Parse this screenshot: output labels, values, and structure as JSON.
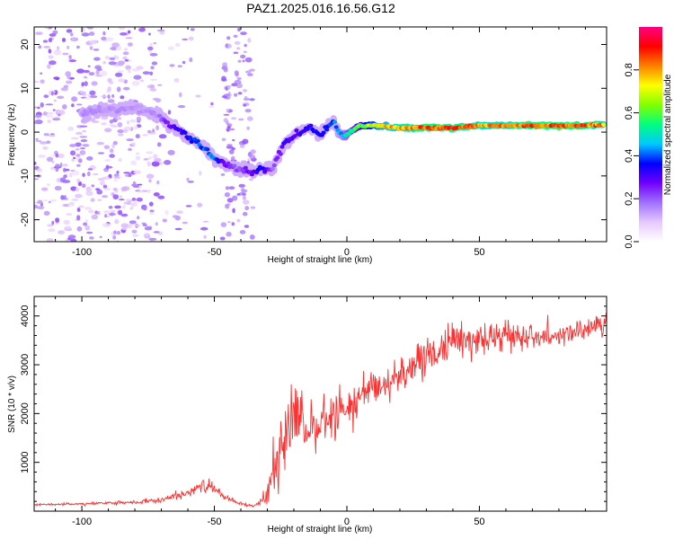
{
  "figure": {
    "title": "PAZ1.2025.016.16.56.G12"
  },
  "chart_data": [
    {
      "type": "heatmap",
      "xlabel": "Height of straight line (km)",
      "ylabel": "Frequency (Hz)",
      "xlim": [
        -118,
        98
      ],
      "ylim": [
        -25,
        24
      ],
      "x_ticks": [
        -100,
        -50,
        0,
        50
      ],
      "y_ticks": [
        -20,
        -10,
        0,
        10,
        20
      ],
      "colorbar": {
        "label": "Normalized spectral amplitude",
        "range": [
          0,
          1
        ],
        "ticks": [
          0.0,
          0.2,
          0.4,
          0.6,
          0.8
        ],
        "colormap": [
          "#ffffff",
          "#e6c8ff",
          "#a070ff",
          "#7000ff",
          "#0000ff",
          "#00c8ff",
          "#00ff80",
          "#80ff00",
          "#ffff00",
          "#ff8000",
          "#ff0000",
          "#ff0080"
        ]
      },
      "ridge_frequency": {
        "x": [
          -100,
          -90,
          -80,
          -72,
          -66,
          -60,
          -55,
          -50,
          -45,
          -40,
          -35,
          -32,
          -28,
          -24,
          -20,
          -15,
          -10,
          -5,
          -2,
          0,
          5,
          10,
          20,
          30,
          40,
          50,
          60,
          70,
          80,
          90,
          97
        ],
        "freq": [
          4.5,
          5,
          5.5,
          4,
          1.5,
          -1,
          -3,
          -6,
          -7.5,
          -8.5,
          -9,
          -8.5,
          -8.5,
          -3,
          -1,
          1,
          -0.5,
          2.5,
          -1,
          -0.5,
          1.5,
          1.5,
          1,
          1,
          1,
          1.5,
          1.5,
          1.5,
          1.5,
          1.5,
          1.8
        ],
        "amplitude": [
          0.15,
          0.15,
          0.15,
          0.15,
          0.3,
          0.35,
          0.4,
          0.4,
          0.25,
          0.2,
          0.3,
          0.35,
          0.2,
          0.3,
          0.3,
          0.35,
          0.35,
          0.4,
          0.45,
          0.5,
          0.6,
          0.7,
          0.8,
          0.85,
          0.85,
          0.8,
          0.8,
          0.85,
          0.85,
          0.85,
          0.8
        ]
      },
      "scatter_region": {
        "x": [
          -118,
          -70
        ],
        "freq": [
          -25,
          24
        ],
        "amplitude": 0.15
      }
    },
    {
      "type": "line",
      "xlabel": "Height of straight line (km)",
      "ylabel": "SNR (10 * v/v)",
      "xlim": [
        -118,
        98
      ],
      "ylim": [
        0,
        4400
      ],
      "x_ticks": [
        -100,
        -50,
        0,
        50
      ],
      "y_ticks": [
        1000,
        2000,
        3000,
        4000
      ],
      "series": [
        {
          "color": "#ff3030",
          "x": [
            -118,
            -100,
            -80,
            -70,
            -60,
            -55,
            -50,
            -45,
            -40,
            -35,
            -31,
            -28,
            -25,
            -22,
            -20,
            -15,
            -10,
            -5,
            0,
            5,
            10,
            20,
            30,
            40,
            50,
            60,
            70,
            80,
            90,
            97
          ],
          "y": [
            130,
            150,
            180,
            220,
            380,
            550,
            450,
            250,
            150,
            100,
            300,
            700,
            1300,
            1500,
            2000,
            1600,
            1800,
            2000,
            2100,
            2300,
            2500,
            2800,
            3100,
            3500,
            3500,
            3600,
            3600,
            3600,
            3700,
            3800
          ],
          "noise": [
            20,
            30,
            40,
            60,
            100,
            200,
            150,
            60,
            40,
            30,
            150,
            700,
            900,
            900,
            900,
            600,
            500,
            500,
            400,
            500,
            400,
            400,
            400,
            400,
            350,
            300,
            250,
            200,
            200,
            250
          ]
        }
      ]
    }
  ]
}
